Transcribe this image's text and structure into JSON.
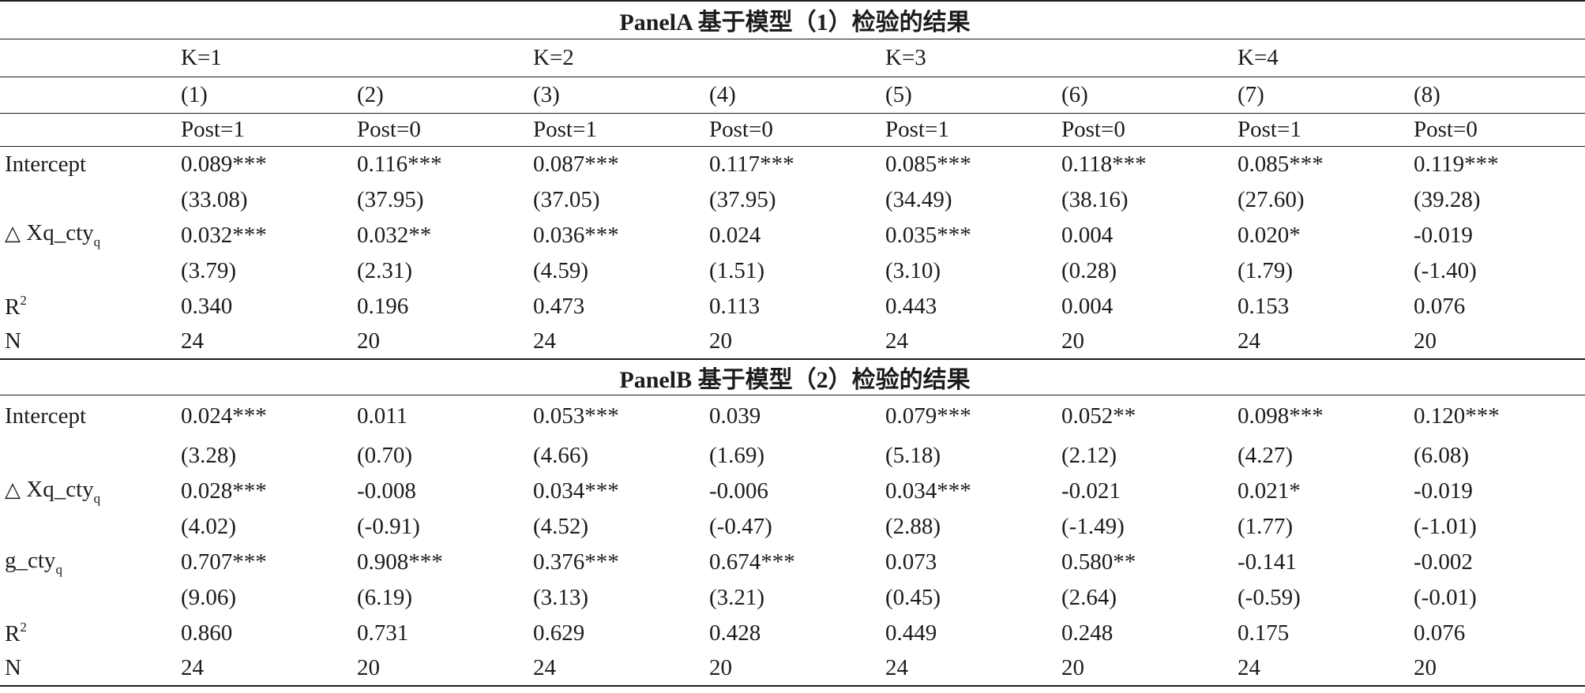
{
  "panel_a": {
    "title": "PanelA 基于模型（1）检验的结果",
    "k_labels": [
      "K=1",
      "K=2",
      "K=3",
      "K=4"
    ],
    "col_numbers": [
      "(1)",
      "(2)",
      "(3)",
      "(4)",
      "(5)",
      "(6)",
      "(7)",
      "(8)"
    ],
    "post_labels": [
      "Post=1",
      "Post=0",
      "Post=1",
      "Post=0",
      "Post=1",
      "Post=0",
      "Post=1",
      "Post=0"
    ],
    "intercept_label": "Intercept",
    "intercept": [
      "0.089***",
      "0.116***",
      "0.087***",
      "0.117***",
      "0.085***",
      "0.118***",
      "0.085***",
      "0.119***"
    ],
    "intercept_t": [
      "(33.08)",
      "(37.95)",
      "(37.05)",
      "(37.95)",
      "(34.49)",
      "(38.16)",
      "(27.60)",
      "(39.28)"
    ],
    "dxq_symbol": "△",
    "dxq_label": " Xq_cty",
    "dxq_sub": "q",
    "dxq": [
      "0.032***",
      "0.032**",
      "0.036***",
      "0.024",
      "0.035***",
      "0.004",
      "0.020*",
      "-0.019"
    ],
    "dxq_t": [
      "(3.79)",
      "(2.31)",
      "(4.59)",
      "(1.51)",
      "(3.10)",
      "(0.28)",
      "(1.79)",
      "(-1.40)"
    ],
    "r2_label": "R",
    "r2_sup": "2",
    "r2": [
      "0.340",
      "0.196",
      "0.473",
      "0.113",
      "0.443",
      "0.004",
      "0.153",
      "0.076"
    ],
    "n_label": "N",
    "n": [
      "24",
      "20",
      "24",
      "20",
      "24",
      "20",
      "24",
      "20"
    ]
  },
  "panel_b": {
    "title": "PanelB 基于模型（2）检验的结果",
    "intercept_label": "Intercept",
    "intercept": [
      "0.024***",
      "0.011",
      "0.053***",
      "0.039",
      "0.079***",
      "0.052**",
      "0.098***",
      "0.120***"
    ],
    "intercept_t": [
      "(3.28)",
      "(0.70)",
      "(4.66)",
      "(1.69)",
      "(5.18)",
      "(2.12)",
      "(4.27)",
      "(6.08)"
    ],
    "dxq_symbol": "△",
    "dxq_label": " Xq_cty",
    "dxq_sub": "q",
    "dxq": [
      "0.028***",
      "-0.008",
      "0.034***",
      "-0.006",
      "0.034***",
      "-0.021",
      "0.021*",
      "-0.019"
    ],
    "dxq_t": [
      "(4.02)",
      "(-0.91)",
      "(4.52)",
      "(-0.47)",
      "(2.88)",
      "(-1.49)",
      "(1.77)",
      "(-1.01)"
    ],
    "g_label": "g_cty",
    "g_sub": "q",
    "g": [
      "0.707***",
      "0.908***",
      "0.376***",
      "0.674***",
      "0.073",
      "0.580**",
      "-0.141",
      "-0.002"
    ],
    "g_t": [
      "(9.06)",
      "(6.19)",
      "(3.13)",
      "(3.21)",
      "(0.45)",
      "(2.64)",
      "(-0.59)",
      "(-0.01)"
    ],
    "r2_label": "R",
    "r2_sup": "2",
    "r2": [
      "0.860",
      "0.731",
      "0.629",
      "0.428",
      "0.449",
      "0.248",
      "0.175",
      "0.076"
    ],
    "n_label": "N",
    "n": [
      "24",
      "20",
      "24",
      "20",
      "24",
      "20",
      "24",
      "20"
    ]
  }
}
